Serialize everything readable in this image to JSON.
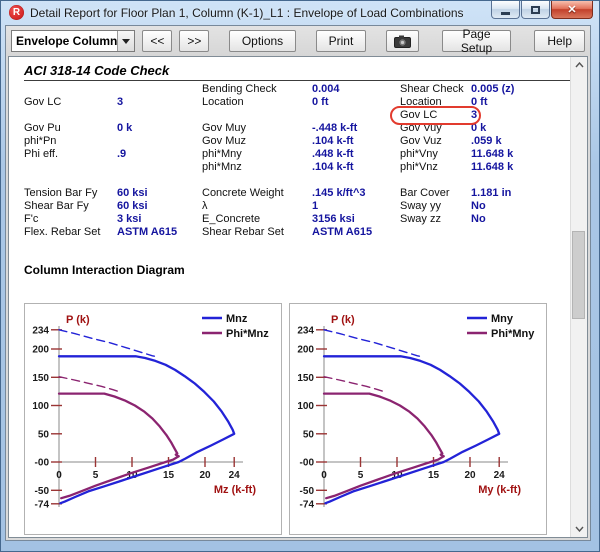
{
  "window": {
    "title": "Detail Report for Floor Plan 1, Column (K-1)_L1 : Envelope of Load Combinations",
    "icon_letter": "R"
  },
  "toolbar": {
    "report_selector": "Envelope Column",
    "prev_label": "<<",
    "next_label": ">>",
    "options_label": "Options",
    "print_label": "Print",
    "camera_icon": "camera-snapshot",
    "page_setup_label": "Page Setup",
    "help_label": "Help"
  },
  "code_check": {
    "heading": "ACI 318-14 Code Check",
    "rows": [
      [
        "",
        "",
        "Bending Check",
        "0.004",
        "Shear Check",
        "0.005 (z)"
      ],
      [
        "Gov LC",
        "3",
        "Location",
        "0 ft",
        "Location",
        "0 ft"
      ],
      [
        "",
        "",
        "",
        "",
        "Gov LC",
        "3"
      ],
      [
        "Gov Pu",
        "0 k",
        "Gov Muy",
        "-.448 k-ft",
        "Gov Vuy",
        "0 k"
      ],
      [
        "phi*Pn",
        "",
        "Gov Muz",
        ".104 k-ft",
        "Gov Vuz",
        ".059 k"
      ],
      [
        "Phi eff.",
        ".9",
        "phi*Mny",
        ".448 k-ft",
        "phi*Vny",
        "11.648 k"
      ],
      [
        "",
        "",
        "phi*Mnz",
        ".104 k-ft",
        "phi*Vnz",
        "11.648 k"
      ],
      [
        "",
        "",
        "",
        "",
        "",
        ""
      ],
      [
        "Tension Bar Fy",
        "60 ksi",
        "Concrete Weight",
        ".145 k/ft^3",
        "Bar Cover",
        "1.181 in"
      ],
      [
        "Shear Bar Fy",
        "60 ksi",
        "λ",
        "1",
        "Sway yy",
        "No"
      ],
      [
        "F'c",
        "3 ksi",
        "E_Concrete",
        "3156 ksi",
        "Sway zz",
        "No"
      ],
      [
        "Flex. Rebar Set",
        "ASTM A615",
        "Shear Rebar Set",
        "ASTM A615",
        "",
        ""
      ]
    ],
    "highlight": {
      "row_index": 2,
      "field": "Gov LC",
      "value": "3",
      "color": "#e23b2e"
    }
  },
  "interaction": {
    "heading": "Column Interaction Diagram"
  },
  "colors": {
    "value_text": "#15159f",
    "series_blue": "#2323d7",
    "series_purple": "#8b2470",
    "axis_title_red": "#a01212",
    "tick_red": "#9a3434"
  },
  "chart_data": [
    {
      "type": "line",
      "title": "",
      "xlabel": "Mz (k-ft)",
      "ylabel": "P (k)",
      "xlim": [
        0,
        24
      ],
      "ylim": [
        -74,
        234
      ],
      "grid": false,
      "legend_position": "top-right",
      "x_ticks": [
        0,
        5,
        10,
        15,
        20,
        24
      ],
      "y_ticks": [
        {
          "v": 234,
          "label": "234"
        },
        {
          "v": 200,
          "label": "200"
        },
        {
          "v": 150,
          "label": "150"
        },
        {
          "v": 100,
          "label": "100"
        },
        {
          "v": 50,
          "label": "50"
        },
        {
          "v": 0,
          "label": "-00"
        },
        {
          "v": -50,
          "label": "-50"
        },
        {
          "v": -74,
          "label": "-74"
        }
      ],
      "legend": [
        {
          "label": "Mnz",
          "color": "#2323d7"
        },
        {
          "label": "Phi*Mnz",
          "color": "#8b2470"
        }
      ],
      "series": [
        {
          "name": "Mnz",
          "color": "#2323d7",
          "dash": false,
          "points": [
            [
              0,
              187
            ],
            [
              10.5,
              187
            ],
            [
              11.8,
              184
            ],
            [
              13.2,
              179
            ],
            [
              14.6,
              172
            ],
            [
              15.9,
              163
            ],
            [
              17.2,
              152
            ],
            [
              18.6,
              139
            ],
            [
              19.9,
              124
            ],
            [
              21.2,
              107
            ],
            [
              22.3,
              89
            ],
            [
              23.2,
              71
            ],
            [
              23.8,
              57
            ],
            [
              24,
              50
            ],
            [
              22.5,
              40
            ],
            [
              20.8,
              29
            ],
            [
              19,
              18
            ],
            [
              17.3,
              6
            ],
            [
              16.4,
              0
            ],
            [
              13.8,
              -11
            ],
            [
              11.2,
              -22
            ],
            [
              8.6,
              -33
            ],
            [
              6.2,
              -43
            ],
            [
              4,
              -52
            ],
            [
              2.2,
              -62
            ],
            [
              0.8,
              -70
            ],
            [
              0.2,
              -73
            ]
          ]
        },
        {
          "name": "Mnz nominal (uncapped)",
          "color": "#2323d7",
          "dash": true,
          "points": [
            [
              0,
              234
            ],
            [
              2.2,
              227
            ],
            [
              4.5,
              219
            ],
            [
              7,
              211
            ],
            [
              9.3,
              202
            ],
            [
              11.3,
              194
            ],
            [
              12.8,
              188
            ],
            [
              13.6,
              186
            ]
          ]
        },
        {
          "name": "Phi*Mnz",
          "color": "#8b2470",
          "dash": false,
          "points": [
            [
              0,
              121
            ],
            [
              6.2,
              121
            ],
            [
              7.6,
              116
            ],
            [
              9,
              109
            ],
            [
              10.4,
              100
            ],
            [
              11.7,
              89
            ],
            [
              12.8,
              77
            ],
            [
              13.8,
              63
            ],
            [
              14.7,
              48
            ],
            [
              15.4,
              34
            ],
            [
              15.9,
              22
            ],
            [
              16.2,
              15
            ],
            [
              16,
              13
            ],
            [
              16.4,
              10
            ],
            [
              15.6,
              4
            ],
            [
              14.6,
              0
            ],
            [
              12.2,
              -10
            ],
            [
              9.8,
              -20
            ],
            [
              7.4,
              -31
            ],
            [
              5,
              -42
            ],
            [
              3,
              -52
            ],
            [
              1.4,
              -60
            ],
            [
              0.3,
              -64
            ]
          ]
        },
        {
          "name": "Phi*Mnz nominal (uncapped)",
          "color": "#8b2470",
          "dash": true,
          "points": [
            [
              0,
              151
            ],
            [
              1.8,
              146
            ],
            [
              3.8,
              140
            ],
            [
              5.8,
              134
            ],
            [
              7.4,
              128
            ],
            [
              8.6,
              123
            ]
          ]
        }
      ]
    },
    {
      "type": "line",
      "title": "",
      "xlabel": "My (k-ft)",
      "ylabel": "P (k)",
      "xlim": [
        0,
        24
      ],
      "ylim": [
        -74,
        234
      ],
      "grid": false,
      "legend_position": "top-right",
      "x_ticks": [
        0,
        5,
        10,
        15,
        20,
        24
      ],
      "y_ticks": [
        {
          "v": 234,
          "label": "234"
        },
        {
          "v": 200,
          "label": "200"
        },
        {
          "v": 150,
          "label": "150"
        },
        {
          "v": 100,
          "label": "100"
        },
        {
          "v": 50,
          "label": "50"
        },
        {
          "v": 0,
          "label": "-00"
        },
        {
          "v": -50,
          "label": "-50"
        },
        {
          "v": -74,
          "label": "-74"
        }
      ],
      "legend": [
        {
          "label": "Mny",
          "color": "#2323d7"
        },
        {
          "label": "Phi*Mny",
          "color": "#8b2470"
        }
      ],
      "series": [
        {
          "name": "Mny",
          "color": "#2323d7",
          "dash": false,
          "points": [
            [
              0,
              187
            ],
            [
              10.5,
              187
            ],
            [
              11.8,
              184
            ],
            [
              13.2,
              179
            ],
            [
              14.6,
              172
            ],
            [
              15.9,
              163
            ],
            [
              17.2,
              152
            ],
            [
              18.6,
              139
            ],
            [
              19.9,
              124
            ],
            [
              21.2,
              107
            ],
            [
              22.3,
              89
            ],
            [
              23.2,
              71
            ],
            [
              23.8,
              57
            ],
            [
              24,
              50
            ],
            [
              22.5,
              40
            ],
            [
              20.8,
              29
            ],
            [
              19,
              18
            ],
            [
              17.3,
              6
            ],
            [
              16.4,
              0
            ],
            [
              13.8,
              -11
            ],
            [
              11.2,
              -22
            ],
            [
              8.6,
              -33
            ],
            [
              6.2,
              -43
            ],
            [
              4,
              -52
            ],
            [
              2.2,
              -62
            ],
            [
              0.8,
              -70
            ],
            [
              0.2,
              -73
            ]
          ]
        },
        {
          "name": "Mny nominal (uncapped)",
          "color": "#2323d7",
          "dash": true,
          "points": [
            [
              0,
              234
            ],
            [
              2.2,
              227
            ],
            [
              4.5,
              219
            ],
            [
              7,
              211
            ],
            [
              9.3,
              202
            ],
            [
              11.3,
              194
            ],
            [
              12.8,
              188
            ],
            [
              13.6,
              186
            ]
          ]
        },
        {
          "name": "Phi*Mny",
          "color": "#8b2470",
          "dash": false,
          "points": [
            [
              0,
              121
            ],
            [
              6.2,
              121
            ],
            [
              7.6,
              116
            ],
            [
              9,
              109
            ],
            [
              10.4,
              100
            ],
            [
              11.7,
              89
            ],
            [
              12.8,
              77
            ],
            [
              13.8,
              63
            ],
            [
              14.7,
              48
            ],
            [
              15.4,
              34
            ],
            [
              15.9,
              22
            ],
            [
              16.2,
              15
            ],
            [
              16,
              13
            ],
            [
              16.4,
              10
            ],
            [
              15.6,
              4
            ],
            [
              14.6,
              0
            ],
            [
              12.2,
              -10
            ],
            [
              9.8,
              -20
            ],
            [
              7.4,
              -31
            ],
            [
              5,
              -42
            ],
            [
              3,
              -52
            ],
            [
              1.4,
              -60
            ],
            [
              0.3,
              -64
            ]
          ]
        },
        {
          "name": "Phi*Mny nominal (uncapped)",
          "color": "#8b2470",
          "dash": true,
          "points": [
            [
              0,
              151
            ],
            [
              1.8,
              146
            ],
            [
              3.8,
              140
            ],
            [
              5.8,
              134
            ],
            [
              7.4,
              128
            ],
            [
              8.6,
              123
            ]
          ]
        }
      ]
    }
  ]
}
